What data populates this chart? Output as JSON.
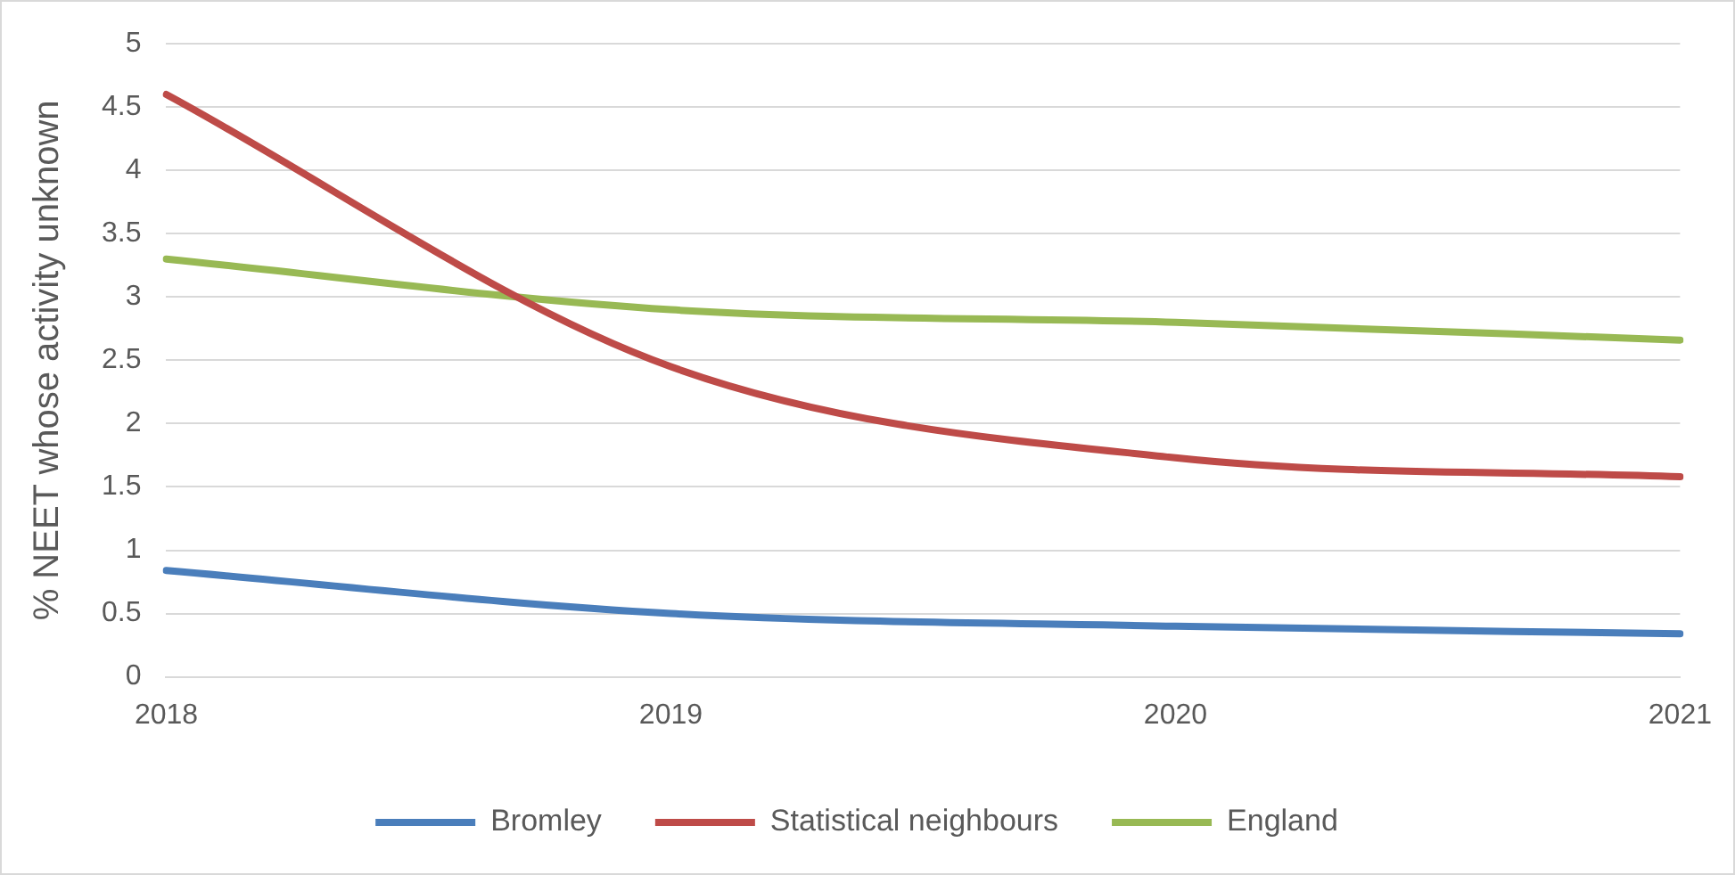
{
  "chart_data": {
    "type": "line",
    "ylabel": "% NEET whose activity unknown",
    "categories": [
      "2018",
      "2019",
      "2020",
      "2021"
    ],
    "series": [
      {
        "name": "Bromley",
        "color": "#4a7ebb",
        "values": [
          0.84,
          0.5,
          0.4,
          0.34
        ]
      },
      {
        "name": "Statistical neighbours",
        "color": "#be4b48",
        "values": [
          4.6,
          2.45,
          1.73,
          1.58
        ]
      },
      {
        "name": "England",
        "color": "#98b954",
        "values": [
          3.3,
          2.9,
          2.8,
          2.66
        ]
      }
    ],
    "ylim": [
      0,
      5
    ],
    "yticks": [
      0,
      0.5,
      1,
      1.5,
      2,
      2.5,
      3,
      3.5,
      4,
      4.5,
      5
    ],
    "grid": "y",
    "legend": "bottom",
    "marker": "none",
    "line_style": "solid"
  }
}
